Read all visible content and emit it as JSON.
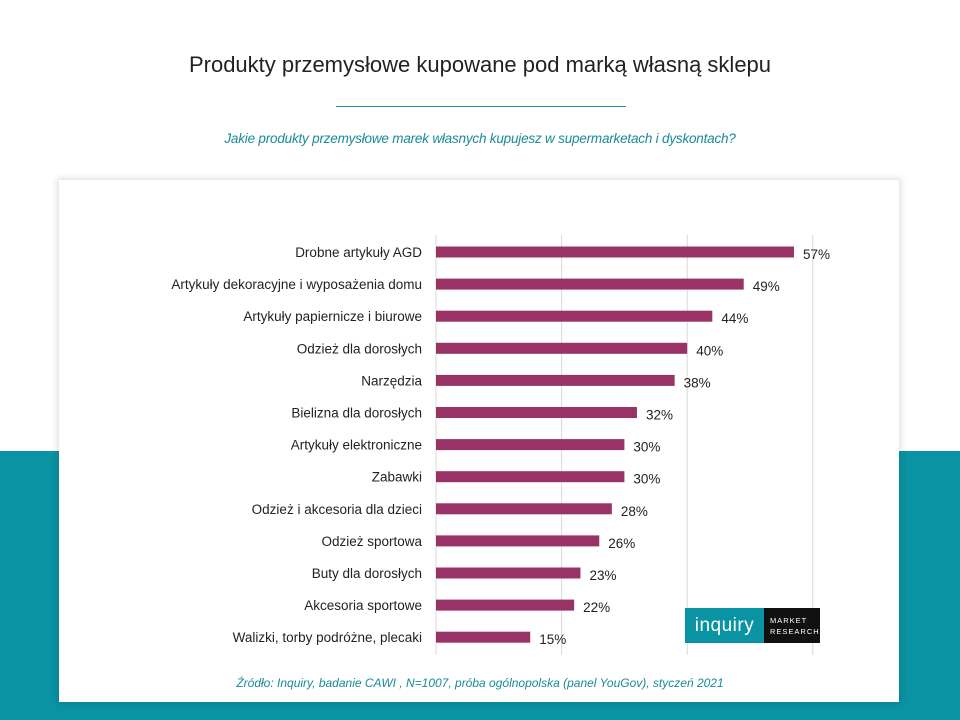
{
  "title": "Produkty przemysłowe kupowane pod marką własną sklepu",
  "subtitle": "Jakie produkty przemysłowe marek własnych kupujesz w supermarketach i dyskontach?",
  "source": "Źródło: Inquiry, badanie CAWI , N=1007, próba ogólnopolska (panel YouGov), styczeń 2021",
  "logo": {
    "brand": "inquiry",
    "line1": "MARKET",
    "line2": "RESEARCH"
  },
  "colors": {
    "bar": "#993366",
    "teal": "#0a93a3",
    "grid": "#d9d9d9"
  },
  "chart_data": {
    "type": "bar",
    "orientation": "horizontal",
    "title": "Produkty przemysłowe kupowane pod marką własną sklepu",
    "xlabel": "",
    "ylabel": "",
    "xlim": [
      0,
      60
    ],
    "grid": true,
    "unit": "%",
    "categories": [
      "Drobne artykuły AGD",
      "Artykuły dekoracyjne i wyposażenia domu",
      "Artykuły papiernicze i biurowe",
      "Odzież dla dorosłych",
      "Narzędzia",
      "Bielizna dla dorosłych",
      "Artykuły elektroniczne",
      "Zabawki",
      "Odzież i akcesoria dla dzieci",
      "Odzież sportowa",
      "Buty dla dorosłych",
      "Akcesoria sportowe",
      "Walizki, torby podróżne, plecaki"
    ],
    "values": [
      57,
      49,
      44,
      40,
      38,
      32,
      30,
      30,
      28,
      26,
      23,
      22,
      15
    ]
  }
}
